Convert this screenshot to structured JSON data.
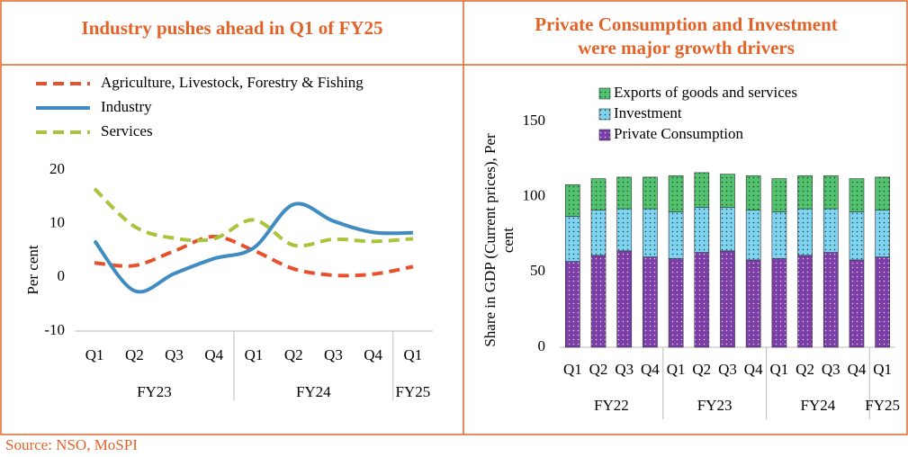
{
  "source": "Source: NSO, MoSPI",
  "chart_data": [
    {
      "type": "line",
      "title": "Industry pushes ahead in Q1 of FY25",
      "ylabel": "Per cent",
      "groups": [
        {
          "label": "FY23",
          "categories": [
            "Q1",
            "Q2",
            "Q3",
            "Q4"
          ]
        },
        {
          "label": "FY24",
          "categories": [
            "Q1",
            "Q2",
            "Q3",
            "Q4"
          ]
        },
        {
          "label": "FY25",
          "categories": [
            "Q1"
          ]
        }
      ],
      "series": [
        {
          "name": "Agriculture, Livestock, Forestry & Fishing",
          "color": "#e8512b",
          "dash": true,
          "values": [
            2.7,
            2.2,
            4.9,
            7.6,
            5.0,
            1.6,
            0.4,
            0.6,
            2.0
          ]
        },
        {
          "name": "Industry",
          "color": "#3f8cc2",
          "dash": false,
          "values": [
            6.8,
            -2.5,
            0.7,
            3.5,
            5.5,
            13.6,
            10.5,
            8.4,
            8.3
          ]
        },
        {
          "name": "Services",
          "color": "#a7c43a",
          "dash": true,
          "values": [
            16.5,
            9.5,
            7.3,
            7.2,
            10.7,
            6.0,
            7.1,
            6.7,
            7.2
          ]
        }
      ],
      "ylim": [
        -10,
        20
      ],
      "yticks": [
        -10,
        0,
        10,
        20
      ]
    },
    {
      "type": "bar",
      "stacked": true,
      "title": "Private Consumption and Investment were major growth drivers",
      "ylabel": "Share in GDP (Current prices), Per cent",
      "groups": [
        {
          "label": "FY22",
          "categories": [
            "Q1",
            "Q2",
            "Q3",
            "Q4"
          ]
        },
        {
          "label": "FY23",
          "categories": [
            "Q1",
            "Q2",
            "Q3",
            "Q4"
          ]
        },
        {
          "label": "FY24",
          "categories": [
            "Q1",
            "Q2",
            "Q3",
            "Q4"
          ]
        },
        {
          "label": "FY25",
          "categories": [
            "Q1"
          ]
        }
      ],
      "series": [
        {
          "name": "Private Consumption",
          "color": "#7b3da6",
          "values": [
            57,
            61,
            64,
            60,
            59,
            63,
            64,
            58,
            59,
            61,
            63,
            58,
            60
          ]
        },
        {
          "name": "Investment",
          "color": "#7fd3f2",
          "values": [
            30,
            30,
            28,
            32,
            31,
            30,
            29,
            33,
            31,
            31,
            29,
            32,
            31
          ]
        },
        {
          "name": "Exports of goods and services",
          "color": "#52c26f",
          "values": [
            21,
            21,
            21,
            21,
            24,
            23,
            22,
            23,
            22,
            22,
            22,
            22,
            22
          ]
        }
      ],
      "ylim": [
        0,
        150
      ],
      "yticks": [
        0,
        50,
        100,
        150
      ]
    }
  ]
}
